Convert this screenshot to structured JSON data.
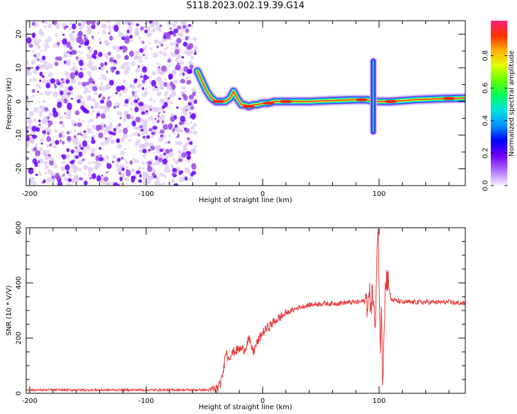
{
  "title": "S118.2023.002.19.39.G14",
  "colors": {
    "snr_line": "#e83535",
    "axis": "#000000",
    "colormap": [
      "#ffffff",
      "#dcc8f5",
      "#9a4ce6",
      "#6a00ff",
      "#0000ff",
      "#00bfff",
      "#00ffc0",
      "#00ff00",
      "#c0ff00",
      "#ffe000",
      "#ff8000",
      "#ff2020",
      "#ff30a0"
    ]
  },
  "chart_data": [
    {
      "type": "heatmap",
      "xlabel": "Height of straight line (km)",
      "ylabel": "Frequency (Hz)",
      "xlim": [
        -203,
        174
      ],
      "ylim": [
        -25,
        24
      ],
      "xticks": [
        -200,
        -100,
        0,
        100
      ],
      "xtick_labels": [
        "-200",
        "-100",
        "0",
        "100"
      ],
      "yticks": [
        -20,
        -10,
        0,
        10,
        20
      ],
      "ytick_labels": [
        "-20",
        "-10",
        "0",
        "10",
        "20"
      ],
      "noise_region_x": [
        -203,
        -55
      ],
      "ridge": {
        "x": [
          -56,
          -52,
          -48,
          -44,
          -40,
          -36,
          -32,
          -28,
          -25,
          -22,
          -18,
          -15,
          -12,
          -8,
          -5,
          0,
          5,
          10,
          20,
          40,
          60,
          80,
          90,
          95,
          100,
          110,
          130,
          150,
          174
        ],
        "y": [
          9,
          6,
          3,
          1,
          0,
          0,
          0,
          1,
          3,
          1,
          -1,
          -1,
          -1.5,
          -1,
          -1,
          -0.5,
          -0.5,
          0,
          0,
          0,
          0.3,
          0.5,
          0.5,
          0,
          0,
          0,
          0.5,
          0.8,
          1
        ]
      },
      "burst": {
        "x": 95,
        "ylim": [
          -9,
          12
        ]
      },
      "colorbar": {
        "label": "Normalized spectral amplitude",
        "range": [
          0,
          1
        ],
        "ticks": [
          0.0,
          0.2,
          0.4,
          0.6,
          0.8
        ],
        "tick_labels": [
          "0.0",
          "0.2",
          "0.4",
          "0.6",
          "0.8"
        ]
      }
    },
    {
      "type": "line",
      "xlabel": "Height of straight line (km)",
      "ylabel": "SNR (10 * V/V)",
      "xlim": [
        -203,
        174
      ],
      "ylim": [
        0,
        600
      ],
      "xticks": [
        -200,
        -100,
        0,
        100
      ],
      "xtick_labels": [
        "-200",
        "-100",
        "0",
        "100"
      ],
      "yticks": [
        0,
        200,
        400,
        600
      ],
      "ytick_labels": [
        "0",
        "200",
        "400",
        "600"
      ],
      "series": [
        {
          "x": [
            -203,
            -150,
            -100,
            -60,
            -45,
            -38,
            -35,
            -33,
            -32,
            -30,
            -27,
            -25,
            -20,
            -15,
            -12,
            -10,
            -8,
            -5,
            0,
            5,
            10,
            20,
            30,
            40,
            50,
            60,
            70,
            80,
            90,
            95,
            97,
            98,
            99,
            100,
            101,
            102,
            103,
            105,
            107,
            110,
            120,
            140,
            160,
            174
          ],
          "y": [
            12,
            12,
            12,
            12,
            12,
            20,
            50,
            100,
            160,
            130,
            140,
            150,
            160,
            160,
            200,
            170,
            150,
            180,
            220,
            240,
            260,
            290,
            310,
            320,
            325,
            325,
            328,
            330,
            335,
            350,
            200,
            530,
            600,
            450,
            80,
            400,
            30,
            360,
            430,
            340,
            330,
            330,
            330,
            325
          ]
        }
      ]
    }
  ]
}
